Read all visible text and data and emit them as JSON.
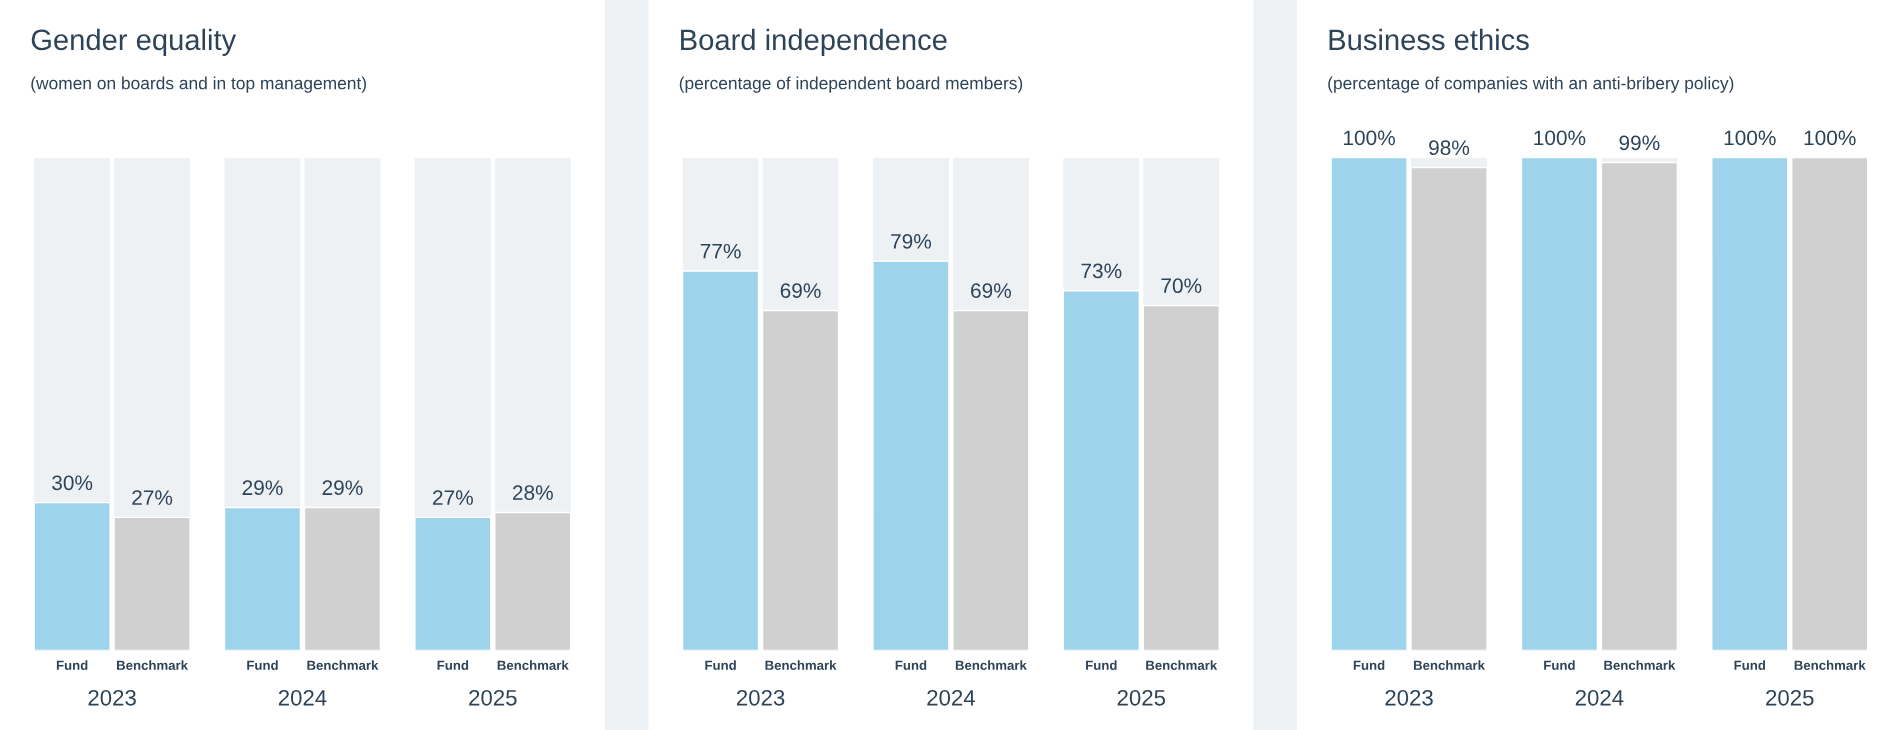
{
  "chart_data": [
    {
      "type": "bar",
      "title": "Gender equality",
      "subtitle": "(women on boards and in top management)",
      "categories": [
        "2023",
        "2024",
        "2025"
      ],
      "ylim": [
        0,
        100
      ],
      "tick_labels": "x",
      "legend": false,
      "grid": false,
      "bands": [
        {
          "axis": "y",
          "from": 0,
          "to": 100,
          "color": "#eef1f4"
        }
      ],
      "series": [
        {
          "name": "Fund",
          "color": "#9dd4ec",
          "values": [
            30,
            29,
            27
          ],
          "value_labels": [
            "30%",
            "29%",
            "27%"
          ]
        },
        {
          "name": "Benchmark",
          "color": "#d0d0d0",
          "values": [
            27,
            29,
            28
          ],
          "value_labels": [
            "27%",
            "29%",
            "28%"
          ]
        }
      ]
    },
    {
      "type": "bar",
      "title": "Board independence",
      "subtitle": "(percentage of independent board members)",
      "categories": [
        "2023",
        "2024",
        "2025"
      ],
      "ylim": [
        0,
        100
      ],
      "tick_labels": "x",
      "legend": false,
      "grid": false,
      "bands": [
        {
          "axis": "y",
          "from": 0,
          "to": 100,
          "color": "#eef1f4"
        }
      ],
      "series": [
        {
          "name": "Fund",
          "color": "#9dd4ec",
          "values": [
            77,
            79,
            73
          ],
          "value_labels": [
            "77%",
            "79%",
            "73%"
          ]
        },
        {
          "name": "Benchmark",
          "color": "#d0d0d0",
          "values": [
            69,
            69,
            70
          ],
          "value_labels": [
            "69%",
            "69%",
            "70%"
          ]
        }
      ]
    },
    {
      "type": "bar",
      "title": "Business ethics",
      "subtitle": "(percentage of companies with an anti-bribery policy)",
      "categories": [
        "2023",
        "2024",
        "2025"
      ],
      "ylim": [
        0,
        100
      ],
      "tick_labels": "x",
      "legend": false,
      "grid": false,
      "bands": [
        {
          "axis": "y",
          "from": 0,
          "to": 100,
          "color": "#eef1f4"
        }
      ],
      "series": [
        {
          "name": "Fund",
          "color": "#9dd4ec",
          "values": [
            100,
            100,
            100
          ],
          "value_labels": [
            "100%",
            "100%",
            "100%"
          ]
        },
        {
          "name": "Benchmark",
          "color": "#d0d0d0",
          "values": [
            98,
            99,
            100
          ],
          "value_labels": [
            "98%",
            "99%",
            "100%"
          ]
        }
      ]
    }
  ]
}
